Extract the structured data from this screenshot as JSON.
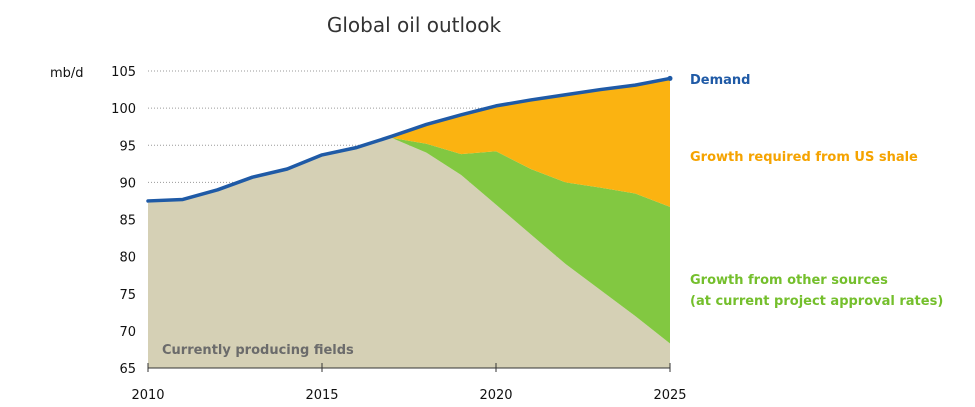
{
  "chart_data": {
    "type": "area",
    "title": "Global oil outlook",
    "ylabel": "mb/d",
    "xlim": [
      2010,
      2025
    ],
    "ylim": [
      65,
      105
    ],
    "x_ticks": [
      "2010",
      "2015",
      "2020",
      "2025"
    ],
    "y_ticks": [
      "65",
      "70",
      "75",
      "80",
      "85",
      "90",
      "95",
      "100",
      "105"
    ],
    "x": [
      2010,
      2011,
      2012,
      2013,
      2014,
      2015,
      2016,
      2017,
      2018,
      2019,
      2020,
      2021,
      2022,
      2023,
      2024,
      2025
    ],
    "demand": [
      87.5,
      87.7,
      89.0,
      90.7,
      91.8,
      93.7,
      94.7,
      96.2,
      97.8,
      99.1,
      100.3,
      101.1,
      101.8,
      102.5,
      103.1,
      104.0
    ],
    "series": [
      {
        "name": "Currently producing fields",
        "color": "#d5d0b5",
        "values": [
          87.5,
          87.7,
          89.0,
          90.7,
          91.8,
          93.7,
          94.7,
          96.0,
          94.0,
          91.0,
          87.0,
          83.0,
          79.0,
          75.5,
          72.0,
          68.3
        ]
      },
      {
        "name": "Growth from other sources\n(at current project approval rates)",
        "color": "#82c841",
        "values": [
          0,
          0,
          0,
          0,
          0,
          0,
          0,
          0,
          1.2,
          2.8,
          7.2,
          8.8,
          11.0,
          13.8,
          16.5,
          18.4
        ]
      },
      {
        "name": "Growth required from US shale",
        "color": "#fbb311",
        "values": [
          0,
          0,
          0,
          0,
          0,
          0,
          0,
          0.2,
          2.6,
          5.3,
          6.1,
          9.3,
          11.8,
          13.2,
          14.6,
          17.3
        ]
      }
    ],
    "annotations": {
      "demand": "Demand",
      "us_shale": "Growth required from US shale",
      "other_line1": "Growth from other sources",
      "other_line2": "(at current project approval rates)",
      "producing": "Currently producing fields"
    },
    "colors": {
      "demand": "#1f5aa6",
      "us_shale": "#f5a300",
      "other": "#74bf2c",
      "producing_text": "#6b6b6b"
    }
  }
}
